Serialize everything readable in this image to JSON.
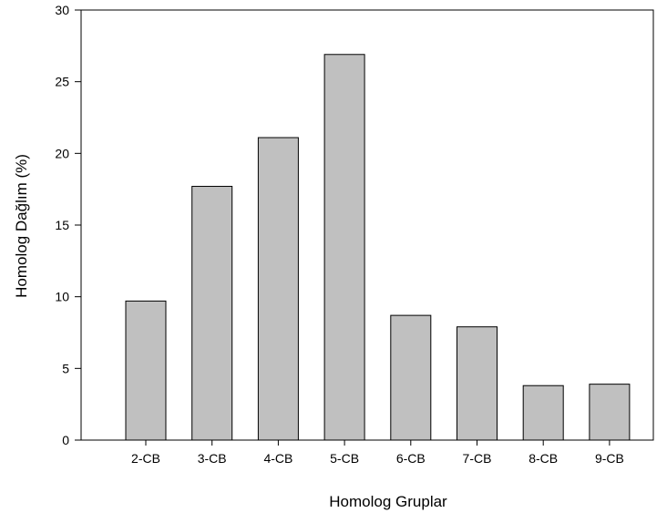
{
  "chart_data": {
    "type": "bar",
    "title": "",
    "xlabel": "Homolog Gruplar",
    "ylabel": "Homolog Dağlım (%)",
    "categories": [
      "2-CB",
      "3-CB",
      "4-CB",
      "5-CB",
      "6-CB",
      "7-CB",
      "8-CB",
      "9-CB"
    ],
    "values": [
      9.7,
      17.7,
      21.1,
      26.9,
      8.7,
      7.9,
      3.8,
      3.9
    ],
    "ylim": [
      0,
      30
    ],
    "yticks": [
      0,
      5,
      10,
      15,
      20,
      25,
      30
    ],
    "grid": false,
    "legend": "none",
    "colors": {
      "bar_fill": "#c0c0c0",
      "bar_stroke": "#000000",
      "axis": "#000000"
    }
  }
}
